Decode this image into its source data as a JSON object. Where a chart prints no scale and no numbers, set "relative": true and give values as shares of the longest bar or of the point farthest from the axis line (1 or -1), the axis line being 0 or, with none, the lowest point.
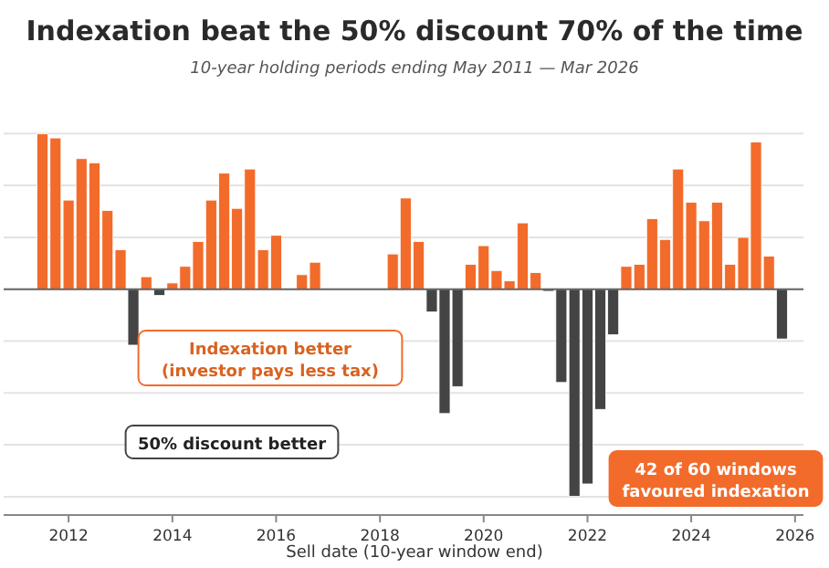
{
  "chart_data": {
    "type": "bar",
    "title": "Indexation beat the 50% discount 70% of the time",
    "subtitle": "10-year holding periods ending May 2011 — Mar 2026",
    "xlabel": "Sell date (10-year window end)",
    "x": [
      "2011-07",
      "2011-10",
      "2012-01",
      "2012-04",
      "2012-07",
      "2012-10",
      "2013-01",
      "2013-04",
      "2013-07",
      "2013-10",
      "2014-01",
      "2014-04",
      "2014-07",
      "2014-10",
      "2015-01",
      "2015-04",
      "2015-07",
      "2015-10",
      "2016-01",
      "2016-04",
      "2016-07",
      "2016-10",
      "2017-01",
      "2017-04",
      "2017-07",
      "2017-10",
      "2018-01",
      "2018-04",
      "2018-07",
      "2018-10",
      "2019-01",
      "2019-04",
      "2019-07",
      "2019-10",
      "2020-01",
      "2020-04",
      "2020-07",
      "2020-10",
      "2021-01",
      "2021-04",
      "2021-07",
      "2021-10",
      "2022-01",
      "2022-04",
      "2022-07",
      "2022-10",
      "2023-01",
      "2023-04",
      "2023-07",
      "2023-10",
      "2024-01",
      "2024-04",
      "2024-07",
      "2024-10",
      "2025-01",
      "2025-04",
      "2025-07",
      "2025-10"
    ],
    "values": [
      0.75,
      0.73,
      0.43,
      0.63,
      0.61,
      0.38,
      0.19,
      -0.27,
      0.06,
      -0.03,
      0.03,
      0.11,
      0.23,
      0.43,
      0.56,
      0.39,
      0.58,
      0.19,
      0.26,
      null,
      0.07,
      0.13,
      null,
      null,
      null,
      null,
      null,
      0.17,
      0.44,
      0.23,
      -0.11,
      -0.6,
      -0.47,
      0.12,
      0.21,
      0.09,
      0.04,
      0.32,
      0.08,
      -0.01,
      -0.45,
      -1,
      -0.94,
      -0.58,
      -0.22,
      0.11,
      0.12,
      0.34,
      0.24,
      0.58,
      0.42,
      0.33,
      0.42,
      0.12,
      0.25,
      0.71,
      0.16,
      -0.24
    ],
    "colors": [
      "#f26b2a",
      "#f26b2a",
      "#f26b2a",
      "#f26b2a",
      "#f26b2a",
      "#f26b2a",
      "#f26b2a",
      "#444444",
      "#f26b2a",
      "#444444",
      "#f26b2a",
      "#f26b2a",
      "#f26b2a",
      "#f26b2a",
      "#f26b2a",
      "#f26b2a",
      "#f26b2a",
      "#f26b2a",
      "#f26b2a",
      null,
      "#f26b2a",
      "#f26b2a",
      null,
      null,
      null,
      null,
      null,
      "#f26b2a",
      "#f26b2a",
      "#f26b2a",
      "#444444",
      "#444444",
      "#444444",
      "#f26b2a",
      "#f26b2a",
      "#f26b2a",
      "#f26b2a",
      "#f26b2a",
      "#f26b2a",
      "#444444",
      "#444444",
      "#444444",
      "#444444",
      "#444444",
      "#444444",
      "#f26b2a",
      "#f26b2a",
      "#f26b2a",
      "#f26b2a",
      "#f26b2a",
      "#f26b2a",
      "#f26b2a",
      "#f26b2a",
      "#f26b2a",
      "#f26b2a",
      "#f26b2a",
      "#f26b2a",
      "#444444"
    ],
    "relative": true,
    "grid": "y",
    "xlim": [
      "2010-10",
      "2026-03"
    ],
    "xticks": [
      "2012",
      "2014",
      "2016",
      "2018",
      "2020",
      "2022",
      "2024",
      "2026"
    ],
    "annotations": [
      "Indexation better\n(investor pays less tax)",
      "50% discount better",
      "42 of 60 windows\nfavoured indexation"
    ]
  }
}
